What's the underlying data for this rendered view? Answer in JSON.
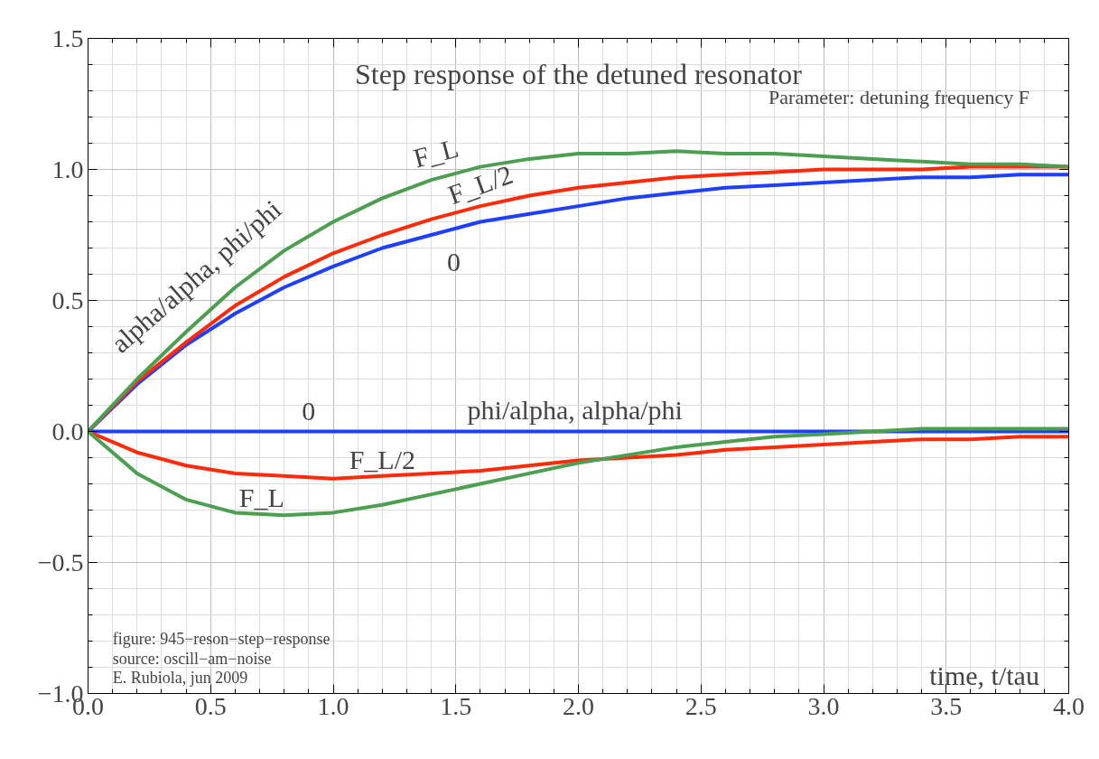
{
  "chart_data": {
    "type": "line",
    "title": "Step response of the detuned resonator",
    "subtitle": "Parameter: detuning frequency F",
    "xlabel": "time, t/tau",
    "x": [
      0,
      0.2,
      0.4,
      0.6,
      0.8,
      1.0,
      1.2,
      1.4,
      1.6,
      1.8,
      2.0,
      2.2,
      2.4,
      2.6,
      2.8,
      3.0,
      3.2,
      3.4,
      3.6,
      3.8,
      4.0
    ],
    "series": [
      {
        "name": "0",
        "color": "#1f3fff",
        "values": [
          0,
          0.18,
          0.33,
          0.45,
          0.55,
          0.63,
          0.7,
          0.75,
          0.8,
          0.83,
          0.86,
          0.89,
          0.91,
          0.93,
          0.94,
          0.95,
          0.96,
          0.97,
          0.97,
          0.98,
          0.98
        ]
      },
      {
        "name": "F_L/2",
        "color": "#ff2a0a",
        "values": [
          0,
          0.19,
          0.34,
          0.48,
          0.59,
          0.68,
          0.75,
          0.81,
          0.86,
          0.9,
          0.93,
          0.95,
          0.97,
          0.98,
          0.99,
          1.0,
          1.0,
          1.0,
          1.01,
          1.01,
          1.01
        ]
      },
      {
        "name": "F_L",
        "color": "#4c9e50",
        "values": [
          0,
          0.2,
          0.38,
          0.55,
          0.69,
          0.8,
          0.89,
          0.96,
          1.01,
          1.04,
          1.06,
          1.06,
          1.07,
          1.06,
          1.06,
          1.05,
          1.04,
          1.03,
          1.02,
          1.02,
          1.01
        ]
      },
      {
        "name": "0",
        "color": "#1f3fff",
        "values": [
          0,
          0,
          0,
          0,
          0,
          0,
          0,
          0,
          0,
          0,
          0,
          0,
          0,
          0,
          0,
          0,
          0,
          0,
          0,
          0,
          0
        ]
      },
      {
        "name": "F_L/2",
        "color": "#ff2a0a",
        "values": [
          0,
          -0.08,
          -0.13,
          -0.16,
          -0.17,
          -0.18,
          -0.17,
          -0.16,
          -0.15,
          -0.13,
          -0.11,
          -0.1,
          -0.09,
          -0.07,
          -0.06,
          -0.05,
          -0.04,
          -0.03,
          -0.03,
          -0.02,
          -0.02
        ]
      },
      {
        "name": "F_L",
        "color": "#4c9e50",
        "values": [
          0,
          -0.16,
          -0.26,
          -0.31,
          -0.32,
          -0.31,
          -0.28,
          -0.24,
          -0.2,
          -0.16,
          -0.12,
          -0.09,
          -0.06,
          -0.04,
          -0.02,
          -0.01,
          0.0,
          0.01,
          0.01,
          0.01,
          0.01
        ]
      }
    ],
    "xlim": [
      0,
      4
    ],
    "ylim": [
      -1,
      1.5
    ],
    "xticks": [
      {
        "value": 0,
        "label": "0.0"
      },
      0.5,
      {
        "value": 1,
        "label": "1.0"
      },
      1.5,
      {
        "value": 2,
        "label": "2.0"
      },
      2.5,
      {
        "value": 3,
        "label": "3.0"
      },
      3.5,
      {
        "value": 4,
        "label": "4.0"
      }
    ],
    "yticks": [
      {
        "value": -1,
        "label": "−1.0"
      },
      {
        "value": -0.5,
        "label": "−0.5"
      },
      {
        "value": 0,
        "label": "0.0"
      },
      {
        "value": 0.5,
        "label": "0.5"
      },
      {
        "value": 1,
        "label": "1.0"
      },
      {
        "value": 1.5,
        "label": "1.5"
      }
    ],
    "grid": true,
    "legend": false,
    "line_style": "solid",
    "marker": "none",
    "annotations": [
      "alpha/alpha, phi/phi",
      "phi/alpha,  alpha/phi",
      "figure:  945−reson−step−response",
      "source: oscill−am−noise",
      "E. Rubiola, jun 2009"
    ]
  }
}
